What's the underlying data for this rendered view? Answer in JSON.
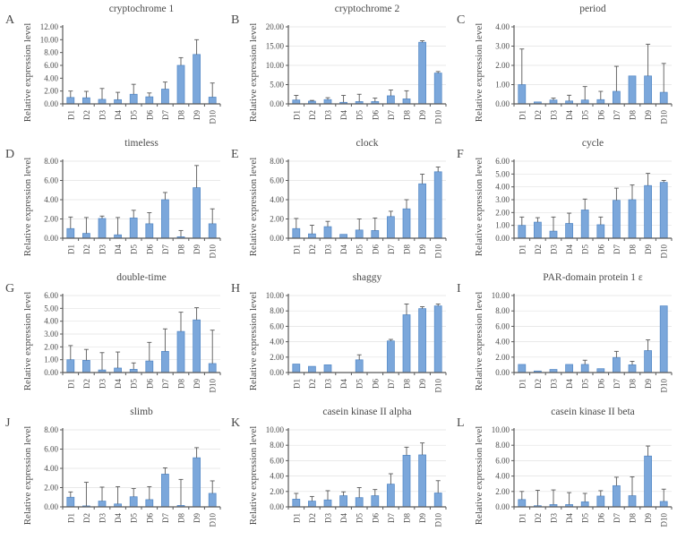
{
  "figure": {
    "description": "Twelve-panel bar chart figure of circadian gene relative expression levels across samples D1-D10",
    "ylabel": "Relative expression level"
  },
  "colors": {
    "bar_fill": "#7BA7DB",
    "bar_stroke": "#5589C6",
    "error_bar": "#595959",
    "axis": "#595959",
    "grid": "#E2E2E2",
    "text": "#4A4A4A"
  },
  "chart_data": [
    {
      "type": "bar",
      "panel_letter": "A",
      "title": "cryptochrome 1",
      "ylabel": "Relative expression level",
      "categories": [
        "D1",
        "D2",
        "D3",
        "D4",
        "D5",
        "D6",
        "D7",
        "D8",
        "D9",
        "D10"
      ],
      "values": [
        1.0,
        0.95,
        0.7,
        0.65,
        1.5,
        1.1,
        2.3,
        6.0,
        7.7,
        1.05
      ],
      "errors": [
        1.0,
        1.0,
        1.7,
        1.15,
        1.55,
        0.6,
        1.1,
        1.2,
        2.3,
        2.2
      ],
      "ylim": [
        0,
        12
      ],
      "ystep": 2,
      "gridlines": false
    },
    {
      "type": "bar",
      "panel_letter": "B",
      "title": "cryptochrome 2",
      "ylabel": "Relative expression level",
      "categories": [
        "D1",
        "D2",
        "D3",
        "D4",
        "D5",
        "D6",
        "D7",
        "D8",
        "D9",
        "D10"
      ],
      "values": [
        1.0,
        0.7,
        1.1,
        0.4,
        0.6,
        0.6,
        2.1,
        1.3,
        16.0,
        8.0
      ],
      "errors": [
        1.2,
        0.2,
        0.5,
        1.8,
        1.9,
        0.9,
        1.5,
        2.1,
        0.4,
        0.4
      ],
      "ylim": [
        0,
        20
      ],
      "ystep": 5,
      "gridlines": true
    },
    {
      "type": "bar",
      "panel_letter": "C",
      "title": "period",
      "ylabel": "Relative expression level",
      "categories": [
        "D1",
        "D2",
        "D3",
        "D4",
        "D5",
        "D6",
        "D7",
        "D8",
        "D9",
        "D10"
      ],
      "values": [
        1.0,
        0.1,
        0.2,
        0.15,
        0.2,
        0.22,
        0.65,
        1.45,
        1.45,
        0.6
      ],
      "errors": [
        1.85,
        0.0,
        0.1,
        0.3,
        0.7,
        0.43,
        1.3,
        0.0,
        1.65,
        1.5
      ],
      "ylim": [
        0,
        4
      ],
      "ystep": 1,
      "gridlines": true
    },
    {
      "type": "bar",
      "panel_letter": "D",
      "title": "timeless",
      "ylabel": "Relative expression level",
      "categories": [
        "D1",
        "D2",
        "D3",
        "D4",
        "D5",
        "D6",
        "D7",
        "D8",
        "D9",
        "D10"
      ],
      "values": [
        1.0,
        0.5,
        2.05,
        0.35,
        2.1,
        1.5,
        4.0,
        0.15,
        5.25,
        1.5
      ],
      "errors": [
        1.2,
        1.65,
        0.25,
        1.8,
        0.8,
        1.15,
        0.75,
        0.65,
        2.3,
        1.55
      ],
      "ylim": [
        0,
        8
      ],
      "ystep": 2,
      "gridlines": true
    },
    {
      "type": "bar",
      "panel_letter": "E",
      "title": "clock",
      "ylabel": "Relative expression level",
      "categories": [
        "D1",
        "D2",
        "D3",
        "D4",
        "D5",
        "D6",
        "D7",
        "D8",
        "D9",
        "D10"
      ],
      "values": [
        1.0,
        0.45,
        1.2,
        0.4,
        0.85,
        0.8,
        2.25,
        3.05,
        5.65,
        6.9
      ],
      "errors": [
        1.05,
        0.9,
        0.55,
        0.0,
        1.15,
        1.3,
        0.55,
        0.95,
        1.0,
        0.5
      ],
      "ylim": [
        0,
        8
      ],
      "ystep": 2,
      "gridlines": true
    },
    {
      "type": "bar",
      "panel_letter": "F",
      "title": "cycle",
      "ylabel": "Relative expression level",
      "categories": [
        "D1",
        "D2",
        "D3",
        "D4",
        "D5",
        "D6",
        "D7",
        "D8",
        "D9",
        "D10"
      ],
      "values": [
        1.0,
        1.25,
        0.55,
        1.15,
        2.2,
        1.05,
        2.95,
        3.0,
        4.1,
        4.35
      ],
      "errors": [
        0.65,
        0.35,
        1.1,
        0.8,
        0.85,
        0.6,
        0.95,
        1.15,
        0.95,
        0.15
      ],
      "ylim": [
        0,
        6
      ],
      "ystep": 1,
      "gridlines": true
    },
    {
      "type": "bar",
      "panel_letter": "G",
      "title": "double-time",
      "ylabel": "Relative expression level",
      "categories": [
        "D1",
        "D2",
        "D3",
        "D4",
        "D5",
        "D6",
        "D7",
        "D8",
        "D9",
        "D10"
      ],
      "values": [
        1.0,
        0.95,
        0.2,
        0.35,
        0.25,
        0.9,
        1.65,
        3.2,
        4.1,
        0.7
      ],
      "errors": [
        1.1,
        0.85,
        1.35,
        1.25,
        0.5,
        1.45,
        1.75,
        1.5,
        0.95,
        2.6
      ],
      "ylim": [
        0,
        6
      ],
      "ystep": 1,
      "gridlines": true
    },
    {
      "type": "bar",
      "panel_letter": "H",
      "title": "shaggy",
      "ylabel": "Relative expression level",
      "categories": [
        "D1",
        "D2",
        "D3",
        "D4",
        "D5",
        "D6",
        "D7",
        "D8",
        "D9",
        "D10"
      ],
      "values": [
        1.1,
        0.8,
        1.0,
        0.0,
        1.65,
        0.0,
        4.1,
        7.5,
        8.3,
        8.65
      ],
      "errors": [
        0.0,
        0.0,
        0.0,
        0.0,
        0.65,
        0.0,
        0.2,
        1.4,
        0.25,
        0.25
      ],
      "ylim": [
        0,
        10
      ],
      "ystep": 2,
      "gridlines": true
    },
    {
      "type": "bar",
      "panel_letter": "I",
      "title": "PAR-domain protein 1 ε",
      "ylabel": "Relative expression level",
      "categories": [
        "D1",
        "D2",
        "D3",
        "D4",
        "D5",
        "D6",
        "D7",
        "D8",
        "D9",
        "D10"
      ],
      "values": [
        1.05,
        0.2,
        0.4,
        1.05,
        1.05,
        0.5,
        1.95,
        1.0,
        2.85,
        8.65
      ],
      "errors": [
        0.0,
        0.0,
        0.0,
        0.0,
        0.55,
        0.0,
        0.8,
        0.45,
        1.4,
        0.0
      ],
      "ylim": [
        0,
        10
      ],
      "ystep": 2,
      "gridlines": true
    },
    {
      "type": "bar",
      "panel_letter": "J",
      "title": "slimb",
      "ylabel": "Relative expression level",
      "categories": [
        "D1",
        "D2",
        "D3",
        "D4",
        "D5",
        "D6",
        "D7",
        "D8",
        "D9",
        "D10"
      ],
      "values": [
        1.0,
        0.1,
        0.6,
        0.3,
        1.05,
        0.75,
        3.4,
        0.15,
        5.1,
        1.4
      ],
      "errors": [
        0.55,
        2.45,
        1.45,
        1.8,
        0.85,
        1.35,
        0.65,
        2.7,
        1.05,
        1.3
      ],
      "ylim": [
        0,
        8
      ],
      "ystep": 2,
      "gridlines": true
    },
    {
      "type": "bar",
      "panel_letter": "K",
      "title": "casein kinase II alpha",
      "ylabel": "Relative expression level",
      "categories": [
        "D1",
        "D2",
        "D3",
        "D4",
        "D5",
        "D6",
        "D7",
        "D8",
        "D9",
        "D10"
      ],
      "values": [
        1.0,
        0.75,
        0.9,
        1.45,
        1.2,
        1.45,
        2.95,
        6.7,
        6.75,
        1.8
      ],
      "errors": [
        0.75,
        0.6,
        1.2,
        0.5,
        1.3,
        0.8,
        1.35,
        1.05,
        1.55,
        1.6
      ],
      "ylim": [
        0,
        10
      ],
      "ystep": 2,
      "gridlines": true
    },
    {
      "type": "bar",
      "panel_letter": "L",
      "title": "casein kinase II beta",
      "ylabel": "Relative expression level",
      "categories": [
        "D1",
        "D2",
        "D3",
        "D4",
        "D5",
        "D6",
        "D7",
        "D8",
        "D9",
        "D10"
      ],
      "values": [
        0.95,
        0.15,
        0.3,
        0.3,
        0.65,
        1.4,
        2.75,
        1.45,
        6.6,
        0.7
      ],
      "errors": [
        1.05,
        2.0,
        1.9,
        1.55,
        1.1,
        0.7,
        1.1,
        2.45,
        1.3,
        1.6
      ],
      "ylim": [
        0,
        10
      ],
      "ystep": 2,
      "gridlines": true
    }
  ]
}
